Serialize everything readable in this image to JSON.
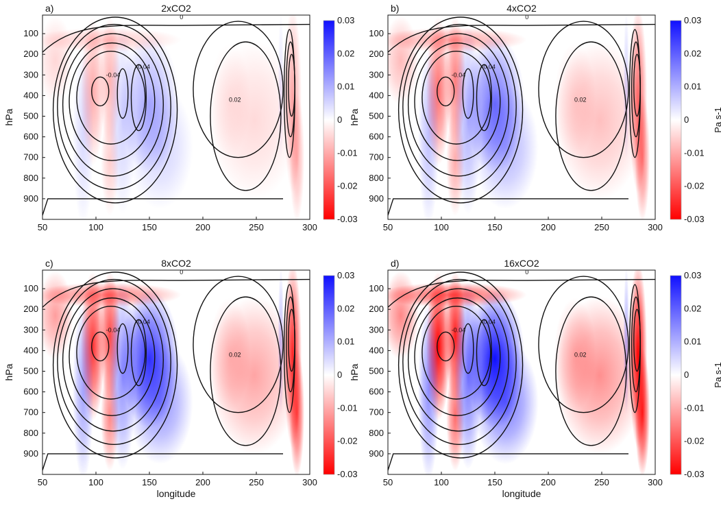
{
  "chart_data": [
    {
      "type": "heatmap",
      "panel": "a)",
      "title": "2xCO2",
      "xlabel": "",
      "ylabel": "hPa",
      "xlim": [
        50,
        300
      ],
      "ylim": [
        1000,
        10
      ],
      "x_ticks": [
        50,
        100,
        150,
        200,
        250,
        300
      ],
      "y_ticks": [
        100,
        200,
        300,
        400,
        500,
        600,
        700,
        800,
        900
      ],
      "shading_scale": 0.35,
      "colorbar": {
        "label": "",
        "range": [
          -0.03,
          0.03
        ],
        "ticks": [
          0.03,
          0.02,
          0.01,
          0,
          -0.01,
          -0.02,
          -0.03
        ]
      },
      "contour_labels": [
        "0",
        "-0.04",
        "-0.04",
        "0.02"
      ]
    },
    {
      "type": "heatmap",
      "panel": "b)",
      "title": "4xCO2",
      "xlabel": "",
      "ylabel": "hPa",
      "xlim": [
        50,
        300
      ],
      "ylim": [
        1000,
        10
      ],
      "x_ticks": [
        50,
        100,
        150,
        200,
        250,
        300
      ],
      "y_ticks": [
        100,
        200,
        300,
        400,
        500,
        600,
        700,
        800,
        900
      ],
      "shading_scale": 0.6,
      "colorbar": {
        "label": "Pa s-1",
        "range": [
          -0.03,
          0.03
        ],
        "ticks": [
          0.03,
          0.02,
          0.01,
          0,
          -0.01,
          -0.02,
          -0.03
        ]
      },
      "contour_labels": [
        "0",
        "-0.04",
        "-0.04",
        "0.02"
      ]
    },
    {
      "type": "heatmap",
      "panel": "c)",
      "title": "8xCO2",
      "xlabel": "longitude",
      "ylabel": "hPa",
      "xlim": [
        50,
        300
      ],
      "ylim": [
        1000,
        10
      ],
      "x_ticks": [
        50,
        100,
        150,
        200,
        250,
        300
      ],
      "y_ticks": [
        100,
        200,
        300,
        400,
        500,
        600,
        700,
        800,
        900
      ],
      "shading_scale": 0.85,
      "colorbar": {
        "label": "",
        "range": [
          -0.03,
          0.03
        ],
        "ticks": [
          0.03,
          0.02,
          0.01,
          0,
          -0.01,
          -0.02,
          -0.03
        ]
      },
      "contour_labels": [
        "0",
        "-0.04",
        "-0.04",
        "0.02"
      ]
    },
    {
      "type": "heatmap",
      "panel": "d)",
      "title": "16xCO2",
      "xlabel": "longitude",
      "ylabel": "hPa",
      "xlim": [
        50,
        300
      ],
      "ylim": [
        1000,
        10
      ],
      "x_ticks": [
        50,
        100,
        150,
        200,
        250,
        300
      ],
      "y_ticks": [
        100,
        200,
        300,
        400,
        500,
        600,
        700,
        800,
        900
      ],
      "shading_scale": 1.05,
      "colorbar": {
        "label": "Pa s-1",
        "range": [
          -0.03,
          0.03
        ],
        "ticks": [
          0.03,
          0.02,
          0.01,
          0,
          -0.01,
          -0.02,
          -0.03
        ]
      },
      "contour_labels": [
        "0",
        "-0.04",
        "-0.04",
        "0.02"
      ]
    }
  ],
  "colors": {
    "positive": "#1010ff",
    "negative": "#ff0000",
    "zero": "#ffffff",
    "contour": "#111111"
  }
}
